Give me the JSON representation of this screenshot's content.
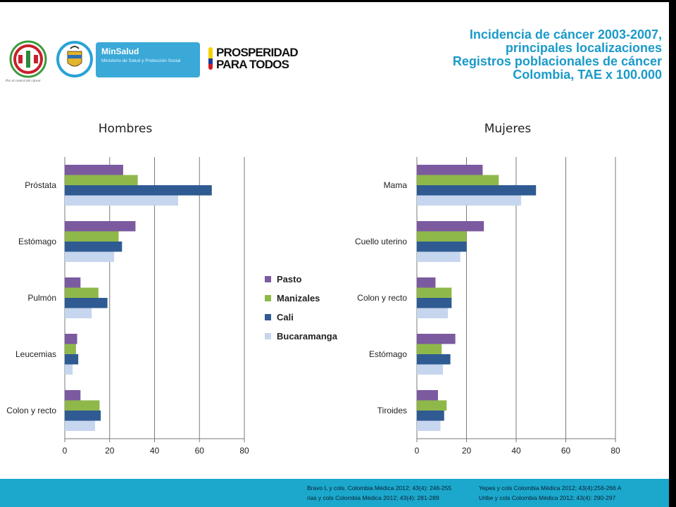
{
  "header": {
    "title_lines": [
      "Incidencia de cáncer 2003-2007,",
      "principales localizaciones",
      "Registros poblacionales de cáncer",
      "Colombia, TAE x 100.000"
    ],
    "inc_logo_tagline": "Por el control del cáncer",
    "minsalud_name": "MinSalud",
    "minsalud_sub": "Ministerio de Salud y Protección Social",
    "prosperidad_line1": "PROSPERIDAD",
    "prosperidad_line2": "PARA TODOS"
  },
  "colors": {
    "Pasto": "#7b5aa0",
    "Manizales": "#8fb84a",
    "Cali": "#2f5b92",
    "Bucaramanga": "#c6d6ee",
    "accent": "#1ba8cc",
    "title": "#1a9ac9"
  },
  "legend": [
    "Pasto",
    "Manizales",
    "Cali",
    "Bucaramanga"
  ],
  "chart_data": [
    {
      "type": "bar",
      "orientation": "horizontal",
      "title": "Hombres",
      "categories": [
        "Próstata",
        "Estómago",
        "Pulmón",
        "Leucemias",
        "Colon y recto"
      ],
      "series": [
        {
          "name": "Pasto",
          "values": [
            26,
            31.5,
            7,
            5.5,
            7
          ]
        },
        {
          "name": "Manizales",
          "values": [
            32.5,
            24,
            15,
            5,
            15.5
          ]
        },
        {
          "name": "Cali",
          "values": [
            65.5,
            25.5,
            19,
            6,
            16
          ]
        },
        {
          "name": "Bucaramanga",
          "values": [
            50.5,
            22,
            12,
            3.5,
            13.5
          ]
        }
      ],
      "xlim": [
        0,
        80
      ],
      "xticks": [
        0,
        20,
        40,
        60,
        80
      ],
      "grid": true,
      "legend_position": "right"
    },
    {
      "type": "bar",
      "orientation": "horizontal",
      "title": "Mujeres",
      "categories": [
        "Mama",
        "Cuello uterino",
        "Colon y recto",
        "Estómago",
        "Tiroides"
      ],
      "series": [
        {
          "name": "Pasto",
          "values": [
            26.5,
            27,
            7.5,
            15.5,
            8.5
          ]
        },
        {
          "name": "Manizales",
          "values": [
            33,
            20,
            14,
            10,
            12
          ]
        },
        {
          "name": "Cali",
          "values": [
            48,
            20,
            14,
            13.5,
            11
          ]
        },
        {
          "name": "Bucaramanga",
          "values": [
            42,
            17.5,
            12.5,
            10.5,
            9.5
          ]
        }
      ],
      "xlim": [
        0,
        80
      ],
      "xticks": [
        0,
        20,
        40,
        60,
        80
      ],
      "grid": true
    }
  ],
  "references": [
    [
      "Bravo L y cols. Colombia Médica 2012; 43(4): 246-255",
      "Yepes y cols Colombia Médica 2012; 43(4):256-266 A"
    ],
    [
      "rias y cols Colombia Médica 2012; 43(4): 281-289",
      "Uribe y cols Colombia Médica 2012; 43(4): 290-297"
    ]
  ]
}
